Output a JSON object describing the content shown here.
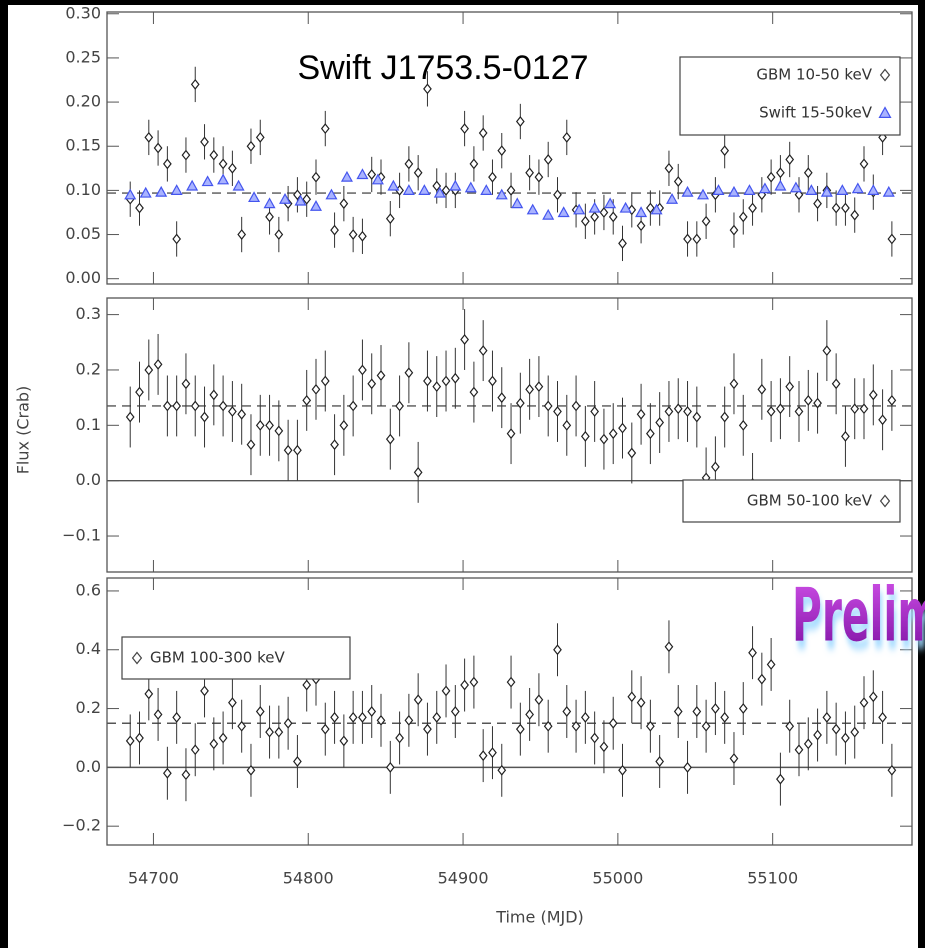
{
  "chart_data": [
    {
      "type": "scatter",
      "title": "Swift J1753.5-0127",
      "xlim": [
        54670,
        55190
      ],
      "xticks": [
        54700,
        54800,
        54900,
        55000,
        55100
      ],
      "xtick_labels": false,
      "ylim": [
        -0.006,
        0.302
      ],
      "yticks": [
        {
          "value": 0,
          "label": "0.00"
        },
        {
          "value": 0.05,
          "label": "0.05"
        },
        {
          "value": 0.1,
          "label": "0.10"
        },
        {
          "value": 0.15,
          "label": "0.15"
        },
        {
          "value": 0.2,
          "label": "0.20"
        },
        {
          "value": 0.25,
          "label": "0.25"
        },
        {
          "value": 0.3,
          "label": "0.30"
        }
      ],
      "hlines": [
        {
          "value": 0.097,
          "style": "dashed"
        }
      ],
      "legend": "upper right",
      "series": [
        {
          "name": "GBM 10-50 keV",
          "marker": "diamond",
          "color": "#222222",
          "error": 0.02,
          "x": [
            54685,
            54691,
            54697,
            54703,
            54709,
            54715,
            54721,
            54727,
            54733,
            54739,
            54745,
            54751,
            54757,
            54763,
            54769,
            54775,
            54781,
            54787,
            54793,
            54799,
            54805,
            54811,
            54817,
            54823,
            54829,
            54835,
            54841,
            54847,
            54853,
            54859,
            54865,
            54871,
            54877,
            54883,
            54889,
            54895,
            54901,
            54907,
            54913,
            54919,
            54925,
            54931,
            54937,
            54943,
            54949,
            54955,
            54961,
            54967,
            54973,
            54979,
            54985,
            54991,
            54997,
            55003,
            55009,
            55015,
            55021,
            55027,
            55033,
            55039,
            55045,
            55051,
            55057,
            55063,
            55069,
            55075,
            55081,
            55087,
            55093,
            55099,
            55105,
            55111,
            55117,
            55123,
            55129,
            55135,
            55141,
            55147,
            55153,
            55159,
            55165,
            55171,
            55177
          ],
          "values": [
            0.09,
            0.08,
            0.16,
            0.148,
            0.13,
            0.045,
            0.14,
            0.22,
            0.155,
            0.14,
            0.13,
            0.125,
            0.05,
            0.15,
            0.16,
            0.07,
            0.05,
            0.085,
            0.095,
            0.09,
            0.115,
            0.17,
            0.055,
            0.085,
            0.05,
            0.048,
            0.118,
            0.115,
            0.068,
            0.1,
            0.13,
            0.12,
            0.215,
            0.105,
            0.1,
            0.1,
            0.17,
            0.13,
            0.165,
            0.115,
            0.145,
            0.1,
            0.178,
            0.12,
            0.115,
            0.135,
            0.095,
            0.16,
            0.078,
            0.065,
            0.07,
            0.075,
            0.07,
            0.04,
            0.078,
            0.06,
            0.08,
            0.08,
            0.125,
            0.11,
            0.045,
            0.045,
            0.065,
            0.095,
            0.145,
            0.055,
            0.07,
            0.08,
            0.095,
            0.115,
            0.12,
            0.135,
            0.095,
            0.12,
            0.085,
            0.1,
            0.08,
            0.08,
            0.072,
            0.13,
            0.098,
            0.16,
            0.045
          ]
        },
        {
          "name": "Swift 15-50keV",
          "marker": "triangle",
          "color": "#4455ee",
          "x": [
            54685,
            54695,
            54705,
            54715,
            54725,
            54735,
            54745,
            54755,
            54765,
            54775,
            54785,
            54795,
            54805,
            54815,
            54825,
            54835,
            54845,
            54855,
            54865,
            54875,
            54885,
            54895,
            54905,
            54915,
            54925,
            54935,
            54945,
            54955,
            54965,
            54975,
            54985,
            54995,
            55005,
            55015,
            55025,
            55035,
            55045,
            55055,
            55065,
            55075,
            55085,
            55095,
            55105,
            55115,
            55125,
            55135,
            55145,
            55155,
            55165,
            55175
          ],
          "values": [
            0.095,
            0.097,
            0.098,
            0.1,
            0.105,
            0.11,
            0.112,
            0.105,
            0.092,
            0.085,
            0.09,
            0.088,
            0.082,
            0.095,
            0.115,
            0.118,
            0.112,
            0.105,
            0.1,
            0.1,
            0.097,
            0.105,
            0.103,
            0.1,
            0.095,
            0.085,
            0.078,
            0.072,
            0.075,
            0.078,
            0.08,
            0.085,
            0.08,
            0.075,
            0.078,
            0.09,
            0.098,
            0.095,
            0.1,
            0.098,
            0.1,
            0.102,
            0.105,
            0.103,
            0.1,
            0.098,
            0.1,
            0.102,
            0.1,
            0.098
          ]
        }
      ]
    },
    {
      "type": "scatter",
      "ylabel": "Flux (Crab)",
      "xlim": [
        54670,
        55190
      ],
      "xticks": [
        54700,
        54800,
        54900,
        55000,
        55100
      ],
      "xtick_labels": false,
      "ylim": [
        -0.165,
        0.33
      ],
      "yticks": [
        {
          "value": -0.1,
          "label": "−0.1"
        },
        {
          "value": 0,
          "label": "0.0"
        },
        0.1,
        0.2,
        0.3
      ],
      "hlines": [
        {
          "value": 0.135,
          "style": "dashed"
        },
        {
          "value": 0,
          "style": "solid"
        }
      ],
      "legend": "lower right",
      "series": [
        {
          "name": "GBM 50-100 keV",
          "marker": "diamond",
          "color": "#222222",
          "error": 0.055,
          "x": [
            54685,
            54691,
            54697,
            54703,
            54709,
            54715,
            54721,
            54727,
            54733,
            54739,
            54745,
            54751,
            54757,
            54763,
            54769,
            54775,
            54781,
            54787,
            54793,
            54799,
            54805,
            54811,
            54817,
            54823,
            54829,
            54835,
            54841,
            54847,
            54853,
            54859,
            54865,
            54871,
            54877,
            54883,
            54889,
            54895,
            54901,
            54907,
            54913,
            54919,
            54925,
            54931,
            54937,
            54943,
            54949,
            54955,
            54961,
            54967,
            54973,
            54979,
            54985,
            54991,
            54997,
            55003,
            55009,
            55015,
            55021,
            55027,
            55033,
            55039,
            55045,
            55051,
            55057,
            55063,
            55069,
            55075,
            55081,
            55087,
            55093,
            55099,
            55105,
            55111,
            55117,
            55123,
            55129,
            55135,
            55141,
            55147,
            55153,
            55159,
            55165,
            55171,
            55177
          ],
          "values": [
            0.115,
            0.16,
            0.2,
            0.21,
            0.135,
            0.135,
            0.175,
            0.135,
            0.115,
            0.155,
            0.135,
            0.125,
            0.12,
            0.065,
            0.1,
            0.1,
            0.09,
            0.055,
            0.055,
            0.145,
            0.165,
            0.18,
            0.065,
            0.1,
            0.135,
            0.2,
            0.175,
            0.19,
            0.075,
            0.135,
            0.195,
            0.015,
            0.18,
            0.17,
            0.18,
            0.185,
            0.255,
            0.16,
            0.235,
            0.18,
            0.15,
            0.085,
            0.14,
            0.165,
            0.17,
            0.135,
            0.125,
            0.1,
            0.135,
            0.08,
            0.125,
            0.075,
            0.085,
            0.095,
            0.05,
            0.12,
            0.085,
            0.105,
            0.125,
            0.13,
            0.125,
            0.115,
            0.005,
            0.025,
            0.115,
            0.175,
            0.1,
            -0.005,
            0.165,
            0.125,
            0.13,
            0.17,
            0.125,
            0.145,
            0.14,
            0.235,
            0.175,
            0.08,
            0.13,
            0.13,
            0.155,
            0.11,
            0.145
          ]
        }
      ]
    },
    {
      "type": "scatter",
      "xlabel": "Time (MJD)",
      "xlim": [
        54670,
        55190
      ],
      "xticks": [
        54700,
        54800,
        54900,
        55000,
        55100
      ],
      "xtick_labels": true,
      "ylim": [
        -0.264,
        0.644
      ],
      "yticks": [
        {
          "value": -0.2,
          "label": "−0.2"
        },
        {
          "value": 0,
          "label": "0.0"
        },
        0.2,
        0.4,
        0.6
      ],
      "hlines": [
        {
          "value": 0.15,
          "style": "dashed"
        },
        {
          "value": 0,
          "style": "solid"
        }
      ],
      "legend": "upper left",
      "series": [
        {
          "name": "GBM 100-300 keV",
          "marker": "diamond",
          "color": "#222222",
          "error": 0.09,
          "x": [
            54685,
            54691,
            54697,
            54703,
            54709,
            54715,
            54721,
            54727,
            54733,
            54739,
            54745,
            54751,
            54757,
            54763,
            54769,
            54775,
            54781,
            54787,
            54793,
            54799,
            54805,
            54811,
            54817,
            54823,
            54829,
            54835,
            54841,
            54847,
            54853,
            54859,
            54865,
            54871,
            54877,
            54883,
            54889,
            54895,
            54901,
            54907,
            54913,
            54919,
            54925,
            54931,
            54937,
            54943,
            54949,
            54955,
            54961,
            54967,
            54973,
            54979,
            54985,
            54991,
            54997,
            55003,
            55009,
            55015,
            55021,
            55027,
            55033,
            55039,
            55045,
            55051,
            55057,
            55063,
            55069,
            55075,
            55081,
            55087,
            55093,
            55099,
            55105,
            55111,
            55117,
            55123,
            55129,
            55135,
            55141,
            55147,
            55153,
            55159,
            55165,
            55171,
            55177
          ],
          "values": [
            0.09,
            0.1,
            0.25,
            0.18,
            -0.02,
            0.17,
            -0.025,
            0.06,
            0.26,
            0.08,
            0.1,
            0.22,
            0.14,
            -0.01,
            0.19,
            0.12,
            0.12,
            0.15,
            0.02,
            0.28,
            0.3,
            0.13,
            0.17,
            0.09,
            0.17,
            0.17,
            0.19,
            0.16,
            0,
            0.1,
            0.16,
            0.23,
            0.13,
            0.17,
            0.26,
            0.19,
            0.28,
            0.29,
            0.04,
            0.05,
            -0.01,
            0.29,
            0.13,
            0.18,
            0.23,
            0.14,
            0.4,
            0.19,
            0.14,
            0.17,
            0.1,
            0.07,
            0.15,
            -0.01,
            0.24,
            0.22,
            0.14,
            0.02,
            0.41,
            0.19,
            0,
            0.19,
            0.14,
            0.2,
            0.17,
            0.03,
            0.2,
            0.39,
            0.3,
            0.35,
            -0.04,
            0.14,
            0.06,
            0.08,
            0.11,
            0.17,
            0.13,
            0.1,
            0.12,
            0.22,
            0.24,
            0.17,
            -0.01
          ]
        }
      ]
    }
  ],
  "watermark": "Prelim"
}
